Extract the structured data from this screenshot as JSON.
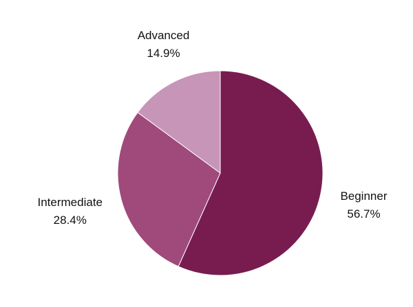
{
  "chart_data": {
    "type": "pie",
    "title": "",
    "start_angle_deg": 0,
    "direction": "clockwise",
    "slices": [
      {
        "name": "Beginner",
        "value": 56.7,
        "label": "Beginner",
        "value_label": "56.7%",
        "color": "#781C50"
      },
      {
        "name": "Intermediate",
        "value": 28.4,
        "label": "Intermediate",
        "value_label": "28.4%",
        "color": "#9F4A7B"
      },
      {
        "name": "Advanced",
        "value": 14.9,
        "label": "Advanced",
        "value_label": "14.9%",
        "color": "#C795B8"
      }
    ],
    "legend": "none",
    "slice_border_color": "#ffffff"
  }
}
